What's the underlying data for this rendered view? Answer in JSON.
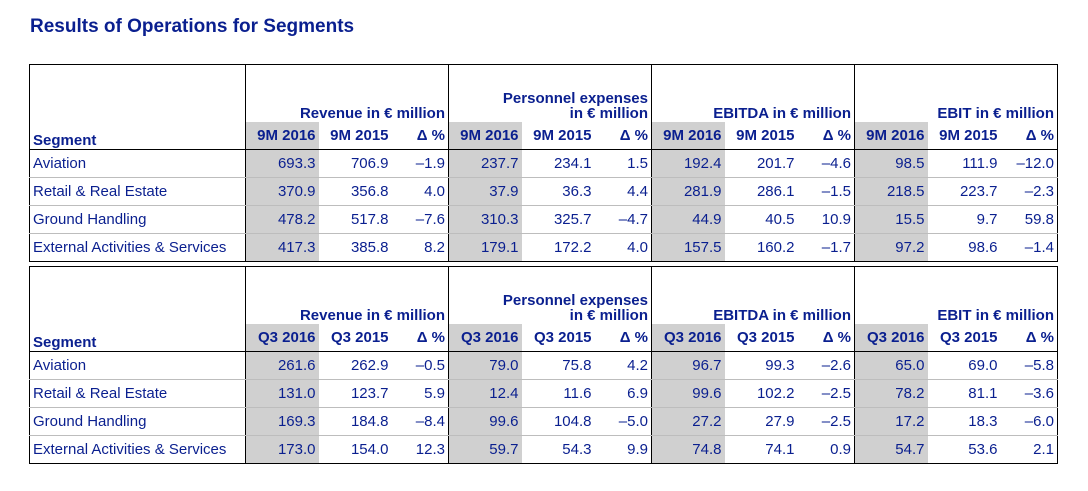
{
  "title": "Results of Operations for Segments",
  "group_headers": {
    "segment": "Segment",
    "revenue": "Revenue in € million",
    "personnel_line1": "Personnel expenses",
    "personnel_line2": "in € million",
    "ebitda": "EBITDA in € million",
    "ebit": "EBIT in € million"
  },
  "table_9m": {
    "col_headers": [
      "9M 2016",
      "9M 2015",
      "Δ %",
      "9M 2016",
      "9M 2015",
      "Δ %",
      "9M 2016",
      "9M 2015",
      "Δ %",
      "9M 2016",
      "9M 2015",
      "Δ %"
    ],
    "rows": [
      {
        "segment": "Aviation",
        "values": [
          "693.3",
          "706.9",
          "–1.9",
          "237.7",
          "234.1",
          "1.5",
          "192.4",
          "201.7",
          "–4.6",
          "98.5",
          "111.9",
          "–12.0"
        ]
      },
      {
        "segment": "Retail & Real Estate",
        "values": [
          "370.9",
          "356.8",
          "4.0",
          "37.9",
          "36.3",
          "4.4",
          "281.9",
          "286.1",
          "–1.5",
          "218.5",
          "223.7",
          "–2.3"
        ]
      },
      {
        "segment": "Ground Handling",
        "values": [
          "478.2",
          "517.8",
          "–7.6",
          "310.3",
          "325.7",
          "–4.7",
          "44.9",
          "40.5",
          "10.9",
          "15.5",
          "9.7",
          "59.8"
        ]
      },
      {
        "segment": "External Activities & Services",
        "values": [
          "417.3",
          "385.8",
          "8.2",
          "179.1",
          "172.2",
          "4.0",
          "157.5",
          "160.2",
          "–1.7",
          "97.2",
          "98.6",
          "–1.4"
        ]
      }
    ]
  },
  "table_q3": {
    "col_headers": [
      "Q3 2016",
      "Q3 2015",
      "Δ %",
      "Q3 2016",
      "Q3 2015",
      "Δ %",
      "Q3 2016",
      "Q3 2015",
      "Δ %",
      "Q3 2016",
      "Q3 2015",
      "Δ %"
    ],
    "rows": [
      {
        "segment": "Aviation",
        "values": [
          "261.6",
          "262.9",
          "–0.5",
          "79.0",
          "75.8",
          "4.2",
          "96.7",
          "99.3",
          "–2.6",
          "65.0",
          "69.0",
          "–5.8"
        ]
      },
      {
        "segment": "Retail & Real Estate",
        "values": [
          "131.0",
          "123.7",
          "5.9",
          "12.4",
          "11.6",
          "6.9",
          "99.6",
          "102.2",
          "–2.5",
          "78.2",
          "81.1",
          "–3.6"
        ]
      },
      {
        "segment": "Ground Handling",
        "values": [
          "169.3",
          "184.8",
          "–8.4",
          "99.6",
          "104.8",
          "–5.0",
          "27.2",
          "27.9",
          "–2.5",
          "17.2",
          "18.3",
          "–6.0"
        ]
      },
      {
        "segment": "External Activities & Services",
        "values": [
          "173.0",
          "154.0",
          "12.3",
          "59.7",
          "54.3",
          "9.9",
          "74.8",
          "74.1",
          "0.9",
          "54.7",
          "53.6",
          "2.1"
        ]
      }
    ]
  },
  "colors": {
    "text": "#0a1f8f",
    "shaded_cell": "#d0d0d0",
    "border": "#000000"
  }
}
